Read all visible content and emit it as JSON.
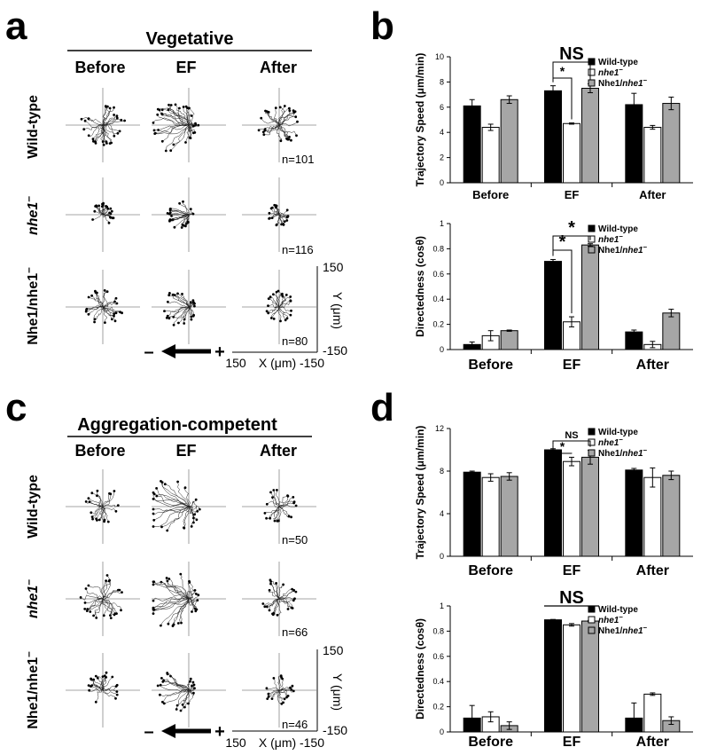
{
  "panels": {
    "a": {
      "letter": "a",
      "condition": "Vegetative",
      "columns": [
        "Before",
        "EF",
        "After"
      ],
      "rows": [
        {
          "label": "Wild-type",
          "n": "n=101"
        },
        {
          "label": "nhe1",
          "n": "n=116"
        },
        {
          "label": "Nhe1/nhe1",
          "n": "n=80"
        }
      ],
      "scale": {
        "y_top": "150",
        "y_bottom": "-150",
        "y_label": "Y (μm)",
        "x_left": "150",
        "x_right": "-150",
        "x_label": "X (μm)"
      },
      "field": {
        "minus": "–",
        "plus": "+"
      }
    },
    "c": {
      "letter": "c",
      "condition": "Aggregation-competent",
      "columns": [
        "Before",
        "EF",
        "After"
      ],
      "rows": [
        {
          "label": "Wild-type",
          "n": "n=50"
        },
        {
          "label": "nhe1",
          "n": "n=66"
        },
        {
          "label": "Nhe1/nhe1",
          "n": "n=46"
        }
      ],
      "scale": {
        "y_top": "150",
        "y_bottom": "-150",
        "y_label": "Y (μm)",
        "x_left": "150",
        "x_right": "-150",
        "x_label": "X (μm)"
      },
      "field": {
        "minus": "–",
        "plus": "+"
      }
    },
    "b": {
      "letter": "b"
    },
    "d": {
      "letter": "d"
    }
  },
  "colors": {
    "wild_type": "#000000",
    "nhe1": "#ffffff",
    "rescue": "#a6a6a6"
  },
  "chart_data": [
    {
      "id": "b-speed",
      "type": "bar",
      "title": "",
      "ylabel": "Trajectory Speed (μm/min)",
      "ylim": [
        0,
        10
      ],
      "yticks": [
        "0",
        "2",
        "4",
        "6",
        "8",
        "10"
      ],
      "categories": [
        "Before",
        "EF",
        "After"
      ],
      "legend": [
        "Wild-type",
        "nhe1–",
        "Nhe1/nhe1–"
      ],
      "series": [
        {
          "name": "Wild-type",
          "values": [
            6.1,
            7.3,
            6.2
          ],
          "errors": [
            0.5,
            0.4,
            0.9
          ]
        },
        {
          "name": "nhe1–",
          "values": [
            4.4,
            4.7,
            4.4
          ],
          "errors": [
            0.25,
            0.05,
            0.15
          ]
        },
        {
          "name": "Nhe1/nhe1–",
          "values": [
            6.6,
            7.5,
            6.3
          ],
          "errors": [
            0.3,
            0.35,
            0.5
          ]
        }
      ],
      "annotations": {
        "stars": [
          "*"
        ],
        "ns": [
          "NS"
        ]
      }
    },
    {
      "id": "b-direct",
      "type": "bar",
      "title": "",
      "ylabel": "Directedness (cosθ)",
      "ylim": [
        0,
        1
      ],
      "yticks": [
        "0",
        "0.2",
        "0.4",
        "0.6",
        "0.8",
        "1"
      ],
      "categories": [
        "Before",
        "EF",
        "After"
      ],
      "legend": [
        "Wild-type",
        "nhe1–",
        "Nhe1/nhe1–"
      ],
      "series": [
        {
          "name": "Wild-type",
          "values": [
            0.04,
            0.7,
            0.14
          ],
          "errors": [
            0.02,
            0.015,
            0.015
          ]
        },
        {
          "name": "nhe1–",
          "values": [
            0.11,
            0.22,
            0.04
          ],
          "errors": [
            0.04,
            0.04,
            0.025
          ]
        },
        {
          "name": "Nhe1/nhe1–",
          "values": [
            0.15,
            0.83,
            0.29
          ],
          "errors": [
            0.005,
            0.01,
            0.03
          ]
        }
      ],
      "annotations": {
        "stars": [
          "*",
          "*"
        ],
        "ns": []
      }
    },
    {
      "id": "d-speed",
      "type": "bar",
      "title": "",
      "ylabel": "Trajectory Speed (μm/min)",
      "ylim": [
        0,
        12
      ],
      "yticks": [
        "0",
        "4",
        "8",
        "12"
      ],
      "categories": [
        "Before",
        "EF",
        "After"
      ],
      "legend": [
        "Wild-type",
        "nhe1–",
        "Nhe1/nhe1–"
      ],
      "series": [
        {
          "name": "Wild-type",
          "values": [
            7.9,
            10.0,
            8.1
          ],
          "errors": [
            0.1,
            0.1,
            0.15
          ]
        },
        {
          "name": "nhe1–",
          "values": [
            7.4,
            8.9,
            7.4
          ],
          "errors": [
            0.35,
            0.4,
            0.9
          ]
        },
        {
          "name": "Nhe1/nhe1–",
          "values": [
            7.5,
            9.3,
            7.6
          ],
          "errors": [
            0.35,
            0.65,
            0.4
          ]
        }
      ],
      "annotations": {
        "stars": [
          "*"
        ],
        "ns": [
          "NS"
        ]
      }
    },
    {
      "id": "d-direct",
      "type": "bar",
      "title": "",
      "ylabel": "Directedness (cosθ)",
      "ylim": [
        0,
        1
      ],
      "yticks": [
        "0",
        "0.2",
        "0.4",
        "0.6",
        "0.8",
        "1"
      ],
      "categories": [
        "Before",
        "EF",
        "After"
      ],
      "legend": [
        "Wild-type",
        "nhe1–",
        "Nhe1/nhe1–"
      ],
      "series": [
        {
          "name": "Wild-type",
          "values": [
            0.11,
            0.89,
            0.11
          ],
          "errors": [
            0.1,
            0.003,
            0.12
          ]
        },
        {
          "name": "nhe1–",
          "values": [
            0.12,
            0.85,
            0.3
          ],
          "errors": [
            0.04,
            0.01,
            0.01
          ]
        },
        {
          "name": "Nhe1/nhe1–",
          "values": [
            0.05,
            0.88,
            0.09
          ],
          "errors": [
            0.03,
            0.005,
            0.03
          ]
        }
      ],
      "annotations": {
        "stars": [],
        "ns": [
          "NS"
        ]
      }
    }
  ]
}
